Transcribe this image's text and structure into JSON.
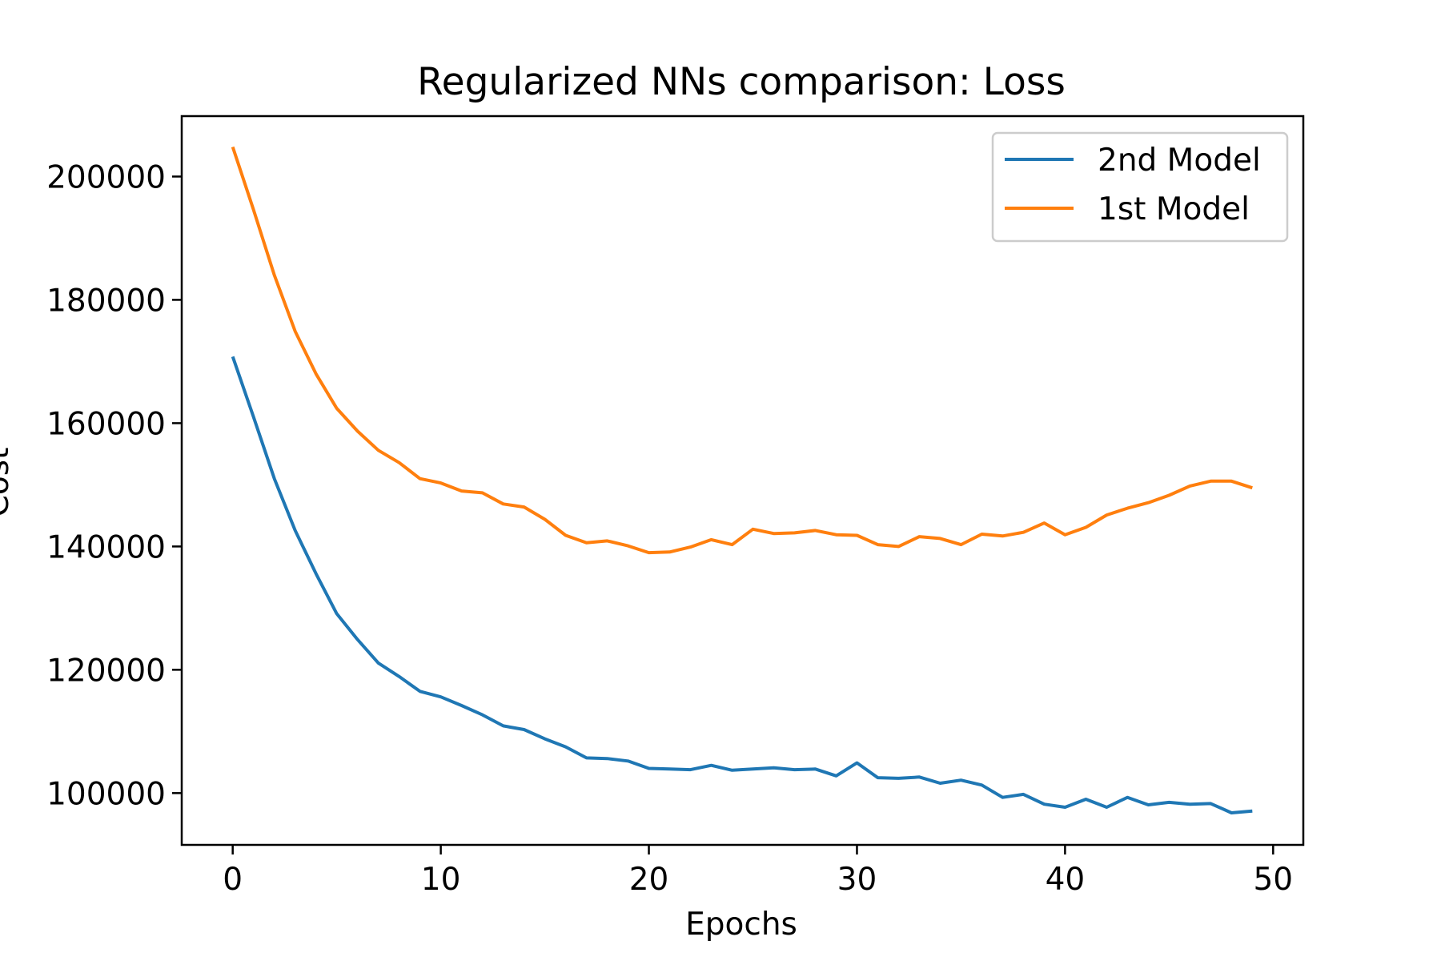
{
  "chart_data": {
    "type": "line",
    "title": "Regularized NNs comparison: Loss",
    "xlabel": "Epochs",
    "ylabel": "Cost",
    "xlim": [
      -2.45,
      51.45
    ],
    "ylim": [
      91600,
      209800
    ],
    "x_ticks": [
      0,
      10,
      20,
      30,
      40,
      50
    ],
    "y_ticks": [
      100000,
      120000,
      140000,
      160000,
      180000,
      200000
    ],
    "grid": false,
    "legend_position": "top-right",
    "x": [
      0,
      1,
      2,
      3,
      4,
      5,
      6,
      7,
      8,
      9,
      10,
      11,
      12,
      13,
      14,
      15,
      16,
      17,
      18,
      19,
      20,
      21,
      22,
      23,
      24,
      25,
      26,
      27,
      28,
      29,
      30,
      31,
      32,
      33,
      34,
      35,
      36,
      37,
      38,
      39,
      40,
      41,
      42,
      43,
      44,
      45,
      46,
      47,
      48,
      49
    ],
    "series": [
      {
        "name": "2nd Model",
        "color": "#1f77b4",
        "values": [
          170800,
          161000,
          151000,
          142600,
          135600,
          129100,
          124900,
          121100,
          118900,
          116500,
          115600,
          114200,
          112700,
          110900,
          110300,
          108800,
          107500,
          105700,
          105600,
          105200,
          104000,
          103900,
          103800,
          104500,
          103700,
          103900,
          104100,
          103800,
          103900,
          102800,
          104900,
          102500,
          102400,
          102600,
          101600,
          102100,
          101300,
          99300,
          99800,
          98200,
          97700,
          99000,
          97700,
          99300,
          98100,
          98500,
          98200,
          98300,
          96800,
          97100
        ]
      },
      {
        "name": "1st Model",
        "color": "#ff7f0e",
        "values": [
          204800,
          194600,
          184000,
          174900,
          168000,
          162400,
          158700,
          155600,
          153600,
          151000,
          150300,
          149000,
          148700,
          146900,
          146400,
          144400,
          141800,
          140600,
          140900,
          140100,
          139000,
          139100,
          139900,
          141100,
          140300,
          142800,
          142100,
          142200,
          142600,
          141900,
          141800,
          140300,
          140000,
          141600,
          141300,
          140300,
          142000,
          141700,
          142300,
          143800,
          141900,
          143100,
          145100,
          146200,
          147100,
          148300,
          149800,
          150600,
          150600,
          149500
        ]
      }
    ]
  }
}
